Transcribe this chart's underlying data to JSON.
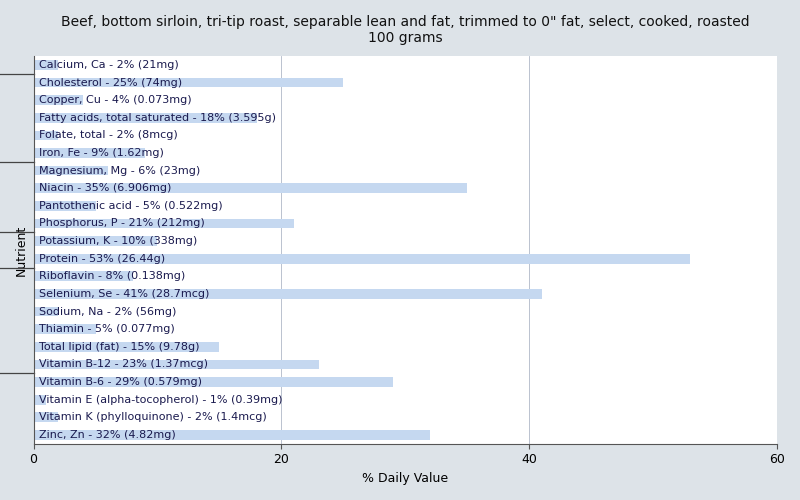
{
  "title": "Beef, bottom sirloin, tri-tip roast, separable lean and fat, trimmed to 0\" fat, select, cooked, roasted\n100 grams",
  "xlabel": "% Daily Value",
  "ylabel": "Nutrient",
  "xlim": [
    0,
    60
  ],
  "xticks": [
    0,
    20,
    40,
    60
  ],
  "background_color": "#dde3e8",
  "plot_background_color": "#ffffff",
  "bar_color": "#c5d8f0",
  "text_color": "#1a1a4e",
  "nutrients": [
    {
      "label": "Calcium, Ca - 2% (21mg)",
      "value": 2
    },
    {
      "label": "Cholesterol - 25% (74mg)",
      "value": 25
    },
    {
      "label": "Copper, Cu - 4% (0.073mg)",
      "value": 4
    },
    {
      "label": "Fatty acids, total saturated - 18% (3.595g)",
      "value": 18
    },
    {
      "label": "Folate, total - 2% (8mcg)",
      "value": 2
    },
    {
      "label": "Iron, Fe - 9% (1.62mg)",
      "value": 9
    },
    {
      "label": "Magnesium, Mg - 6% (23mg)",
      "value": 6
    },
    {
      "label": "Niacin - 35% (6.906mg)",
      "value": 35
    },
    {
      "label": "Pantothenic acid - 5% (0.522mg)",
      "value": 5
    },
    {
      "label": "Phosphorus, P - 21% (212mg)",
      "value": 21
    },
    {
      "label": "Potassium, K - 10% (338mg)",
      "value": 10
    },
    {
      "label": "Protein - 53% (26.44g)",
      "value": 53
    },
    {
      "label": "Riboflavin - 8% (0.138mg)",
      "value": 8
    },
    {
      "label": "Selenium, Se - 41% (28.7mcg)",
      "value": 41
    },
    {
      "label": "Sodium, Na - 2% (56mg)",
      "value": 2
    },
    {
      "label": "Thiamin - 5% (0.077mg)",
      "value": 5
    },
    {
      "label": "Total lipid (fat) - 15% (9.78g)",
      "value": 15
    },
    {
      "label": "Vitamin B-12 - 23% (1.37mcg)",
      "value": 23
    },
    {
      "label": "Vitamin B-6 - 29% (0.579mg)",
      "value": 29
    },
    {
      "label": "Vitamin E (alpha-tocopherol) - 1% (0.39mg)",
      "value": 1
    },
    {
      "label": "Vitamin K (phylloquinone) - 2% (1.4mcg)",
      "value": 2
    },
    {
      "label": "Zinc, Zn - 32% (4.82mg)",
      "value": 32
    }
  ],
  "group_dividers": [
    1,
    6,
    10,
    12,
    18
  ],
  "title_fontsize": 10,
  "axis_label_fontsize": 9,
  "tick_fontsize": 9,
  "bar_label_fontsize": 8
}
